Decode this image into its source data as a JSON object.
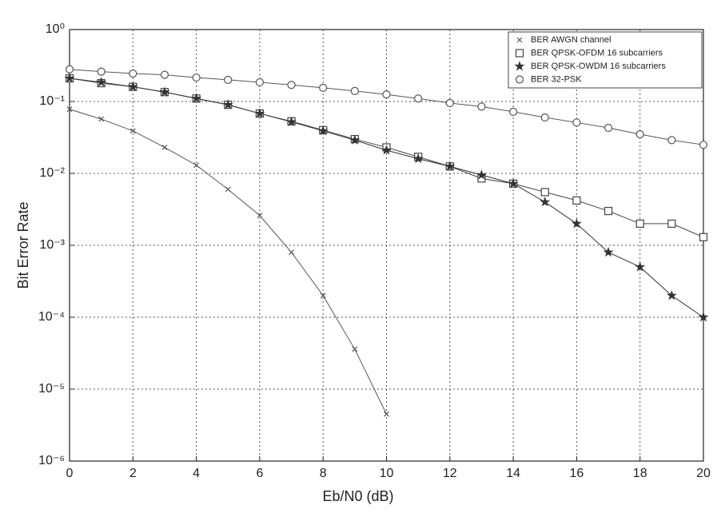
{
  "chart_data": {
    "type": "line",
    "xlabel": "Eb/N0 (dB)",
    "ylabel": "Bit Error Rate",
    "xlim": [
      0,
      20
    ],
    "xticks": [
      0,
      2,
      4,
      6,
      8,
      10,
      12,
      14,
      16,
      18,
      20
    ],
    "ylim": [
      1e-06,
      1
    ],
    "yticks": [
      {
        "value": 1,
        "label": "10⁰"
      },
      {
        "value": 0.1,
        "label": "10⁻¹"
      },
      {
        "value": 0.01,
        "label": "10⁻²"
      },
      {
        "value": 0.001,
        "label": "10⁻³"
      },
      {
        "value": 0.0001,
        "label": "10⁻⁴"
      },
      {
        "value": 1e-05,
        "label": "10⁻⁵"
      },
      {
        "value": 1e-06,
        "label": "10⁻⁶"
      }
    ],
    "log_y": true,
    "grid": true,
    "legend": "upper right",
    "series": [
      {
        "name": "BER AWGN channel",
        "color": "#555555",
        "marker": "x",
        "x": [
          0,
          1,
          2,
          3,
          4,
          5,
          6,
          7,
          8,
          9,
          10
        ],
        "values": [
          0.078,
          0.057,
          0.039,
          0.023,
          0.013,
          0.006,
          0.0026,
          0.0008,
          0.0002,
          3.6e-05,
          4.5e-06
        ]
      },
      {
        "name": "BER QPSK-OFDM 16 subcarriers",
        "color": "#444444",
        "marker": "square",
        "x": [
          0,
          1,
          2,
          3,
          4,
          5,
          6,
          7,
          8,
          9,
          10,
          11,
          12,
          13,
          14,
          15,
          16,
          17,
          18,
          19,
          20
        ],
        "values": [
          0.21,
          0.18,
          0.16,
          0.135,
          0.11,
          0.09,
          0.068,
          0.053,
          0.04,
          0.03,
          0.023,
          0.017,
          0.0125,
          0.0085,
          0.0072,
          0.0055,
          0.0042,
          0.003,
          0.002,
          0.002,
          0.0013
        ]
      },
      {
        "name": "BER QPSK-OWDM 16 subcarriers",
        "color": "#333333",
        "marker": "star",
        "x": [
          0,
          1,
          2,
          3,
          4,
          5,
          6,
          7,
          8,
          9,
          10,
          11,
          12,
          13,
          14,
          15,
          16,
          17,
          18,
          19,
          20
        ],
        "values": [
          0.21,
          0.185,
          0.16,
          0.135,
          0.11,
          0.09,
          0.068,
          0.052,
          0.039,
          0.029,
          0.021,
          0.016,
          0.0125,
          0.0095,
          0.0072,
          0.004,
          0.002,
          0.0008,
          0.0005,
          0.0002,
          0.0001
        ]
      },
      {
        "name": "BER 32-PSK",
        "color": "#555555",
        "marker": "circle",
        "x": [
          0,
          1,
          2,
          3,
          4,
          5,
          6,
          7,
          8,
          9,
          10,
          11,
          12,
          13,
          14,
          15,
          16,
          17,
          18,
          19,
          20
        ],
        "values": [
          0.28,
          0.26,
          0.245,
          0.235,
          0.215,
          0.2,
          0.185,
          0.17,
          0.155,
          0.14,
          0.125,
          0.11,
          0.095,
          0.085,
          0.072,
          0.06,
          0.051,
          0.043,
          0.035,
          0.029,
          0.025
        ]
      }
    ]
  }
}
